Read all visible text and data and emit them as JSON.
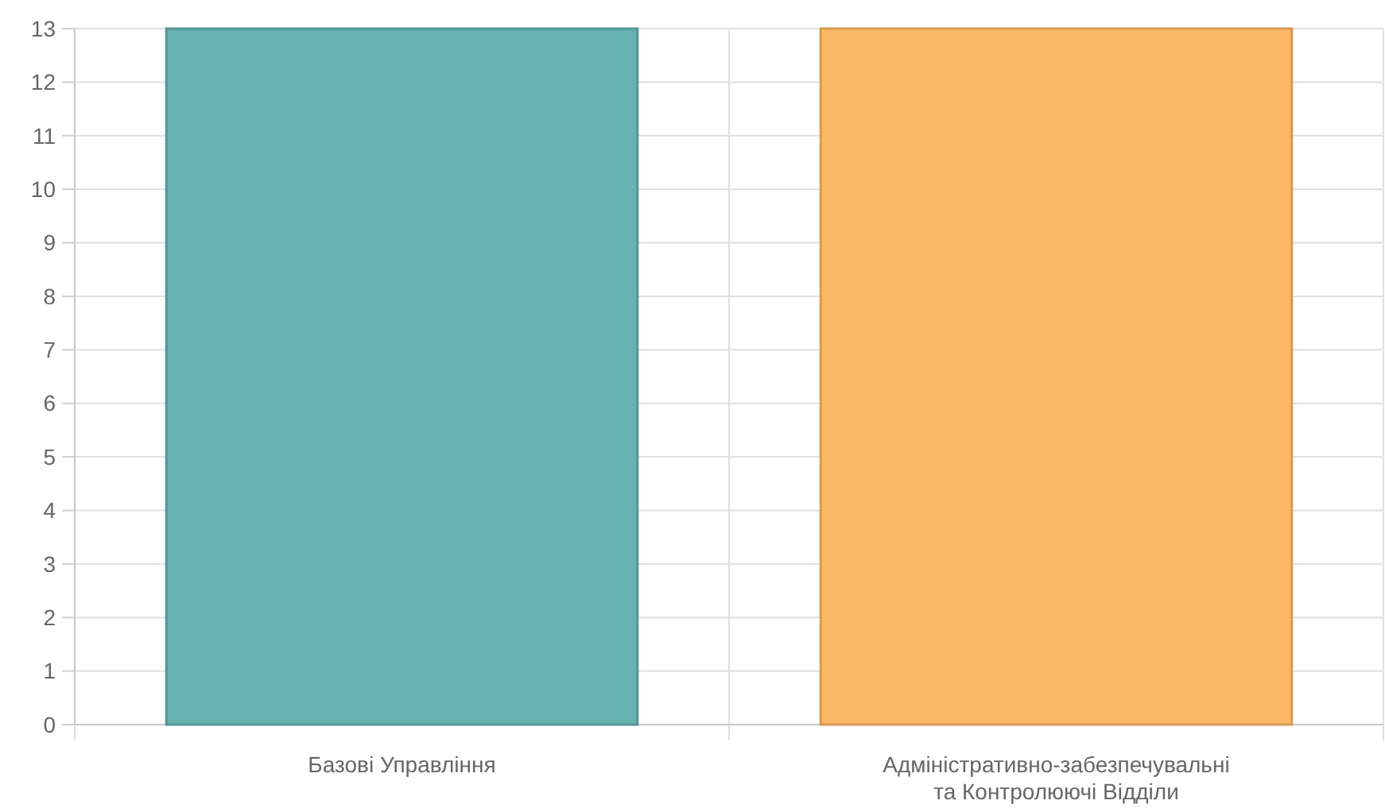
{
  "chart_data": {
    "type": "bar",
    "categories": [
      "Базові Управління",
      "Адміністративно-забезпечувальні та Контролюючі Відділи"
    ],
    "values": [
      13,
      13
    ],
    "colors": [
      "#66b2b2",
      "#fdb866"
    ],
    "ylim": [
      0,
      13
    ],
    "yticks": [
      0,
      1,
      2,
      3,
      4,
      5,
      6,
      7,
      8,
      9,
      10,
      11,
      12,
      13
    ],
    "grid": true
  }
}
